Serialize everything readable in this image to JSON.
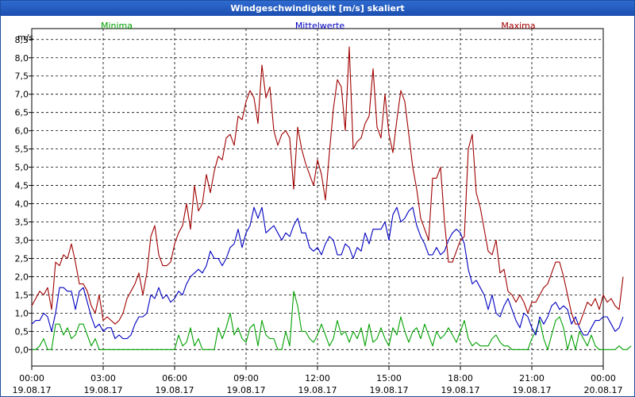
{
  "window": {
    "title": "Windgeschwindigkeit [m/s] skaliert"
  },
  "chart_data": {
    "type": "line",
    "title": "Windgeschwindigkeit [m/s] skaliert",
    "ylabel": "m/s",
    "xlabel": "",
    "ylim": [
      -0.45,
      8.8
    ],
    "xlim": [
      0,
      24
    ],
    "grid": true,
    "colors": {
      "min": "#00a000",
      "mean": "#0000c0",
      "max": "#a00000",
      "grid": "#000000"
    },
    "y_ticks": [
      "0,0",
      "0,5",
      "1,0",
      "1,5",
      "2,0",
      "2,5",
      "3,0",
      "3,5",
      "4,0",
      "4,5",
      "5,0",
      "5,5",
      "6,0",
      "6,5",
      "7,0",
      "7,5",
      "8,0",
      "8,5"
    ],
    "x_ticks": [
      {
        "time": "00:00",
        "date": "19.08.17"
      },
      {
        "time": "03:00",
        "date": "19.08.17"
      },
      {
        "time": "06:00",
        "date": "19.08.17"
      },
      {
        "time": "09:00",
        "date": "19.08.17"
      },
      {
        "time": "12:00",
        "date": "19.08.17"
      },
      {
        "time": "15:00",
        "date": "19.08.17"
      },
      {
        "time": "18:00",
        "date": "19.08.17"
      },
      {
        "time": "21:00",
        "date": "19.08.17"
      },
      {
        "time": "00:00",
        "date": "20.08.17"
      }
    ],
    "legend": [
      "Minima",
      "Mittelwerte",
      "Maxima"
    ],
    "series": [
      {
        "name": "Minima",
        "key": "min",
        "x_step_hours": 0.16667,
        "values": [
          0,
          0,
          0.1,
          0.3,
          0,
          0,
          0.7,
          0.7,
          0.4,
          0.6,
          0.3,
          0.4,
          0.7,
          0.7,
          0.4,
          0.1,
          0.3,
          0,
          0,
          0,
          0,
          0,
          0,
          0,
          0,
          0,
          0,
          0,
          0,
          0,
          0,
          0,
          0,
          0,
          0,
          0,
          0,
          0.4,
          0.1,
          0.2,
          0.6,
          0.1,
          0.3,
          0,
          0,
          0,
          0,
          0.6,
          0.3,
          0.6,
          1.0,
          0.4,
          0.6,
          0.3,
          0.2,
          0.6,
          0.7,
          0.1,
          0.8,
          0.4,
          0.3,
          0.3,
          0,
          0,
          0.5,
          0.1,
          1.6,
          1.2,
          0.5,
          0.5,
          0.3,
          0.2,
          0.4,
          0.7,
          0.4,
          0.1,
          0.3,
          0.8,
          0.4,
          0.5,
          0.2,
          0.5,
          0.3,
          0.6,
          0.1,
          0.7,
          0.2,
          0.3,
          0.6,
          0.3,
          0.1,
          0.6,
          0.4,
          0.9,
          0.5,
          0.2,
          0.5,
          0.6,
          0.3,
          0.7,
          0.4,
          0.1,
          0.5,
          0.3,
          0.4,
          0.6,
          0.4,
          0.2,
          0.5,
          0.8,
          0.3,
          0.1,
          0.2,
          0.1,
          0.1,
          0.1,
          0.3,
          0.4,
          0.2,
          0.1,
          0.1,
          0,
          0,
          0,
          0,
          0,
          0.3,
          0.5,
          0.8,
          0.3,
          0,
          0.4,
          0.8,
          0.9,
          0.6,
          0,
          0.4,
          0,
          0.5,
          0.3,
          0.1,
          0.4,
          0.1,
          0,
          0,
          0,
          0,
          0,
          0.1,
          0,
          0,
          0.1
        ]
      },
      {
        "name": "Mittelwerte",
        "key": "mean",
        "x_step_hours": 0.16667,
        "values": [
          0.7,
          0.8,
          0.8,
          1.0,
          0.9,
          0.5,
          1.0,
          1.7,
          1.7,
          1.6,
          1.6,
          1.1,
          1.6,
          1.7,
          1.3,
          0.9,
          0.6,
          0.7,
          0.5,
          0.6,
          0.6,
          0.3,
          0.4,
          0.3,
          0.3,
          0.4,
          0.7,
          0.9,
          0.9,
          1.0,
          1.5,
          1.4,
          1.7,
          1.4,
          1.5,
          1.3,
          1.4,
          1.6,
          1.5,
          1.8,
          2.0,
          2.1,
          2.2,
          2.1,
          2.3,
          2.7,
          2.5,
          2.5,
          2.3,
          2.5,
          2.8,
          2.9,
          3.3,
          2.8,
          3.2,
          3.4,
          3.9,
          3.6,
          3.9,
          3.2,
          3.3,
          3.4,
          3.2,
          3.0,
          3.2,
          3.1,
          3.4,
          3.6,
          3.2,
          3.2,
          2.8,
          2.7,
          2.8,
          2.6,
          2.9,
          3.1,
          3.0,
          2.6,
          2.6,
          2.9,
          2.8,
          2.5,
          2.8,
          2.7,
          3.2,
          2.9,
          3.3,
          3.3,
          3.3,
          3.5,
          3.0,
          3.7,
          3.9,
          3.5,
          3.6,
          3.8,
          3.9,
          3.4,
          3.1,
          2.9,
          2.6,
          2.6,
          2.8,
          2.6,
          2.7,
          3.0,
          3.2,
          3.3,
          3.2,
          2.9,
          2.2,
          1.8,
          1.9,
          1.7,
          1.5,
          1.1,
          1.5,
          1.0,
          0.9,
          1.2,
          1.4,
          1.1,
          0.8,
          0.6,
          1.0,
          0.9,
          0.6,
          0.4,
          0.9,
          0.7,
          0.9,
          1.2,
          1.3,
          1.1,
          1.2,
          1.1,
          0.7,
          0.9,
          0.6,
          0.4,
          0.4,
          0.6,
          0.8,
          0.8,
          0.9,
          0.9,
          0.7,
          0.5,
          0.6,
          0.9
        ]
      },
      {
        "name": "Maxima",
        "key": "max",
        "x_step_hours": 0.16667,
        "values": [
          1.2,
          1.4,
          1.6,
          1.5,
          1.7,
          1.1,
          2.4,
          2.3,
          2.6,
          2.5,
          2.9,
          2.4,
          1.8,
          1.8,
          1.6,
          1.2,
          1.0,
          1.5,
          0.8,
          0.9,
          0.8,
          0.7,
          0.8,
          1.0,
          1.4,
          1.6,
          1.8,
          2.1,
          1.5,
          2.1,
          3.1,
          3.4,
          2.6,
          2.3,
          2.3,
          2.4,
          2.9,
          3.2,
          3.4,
          4.0,
          3.3,
          4.5,
          3.8,
          4.0,
          4.8,
          4.3,
          4.9,
          5.3,
          5.2,
          5.8,
          5.9,
          5.6,
          6.4,
          6.3,
          6.8,
          7.1,
          6.9,
          6.2,
          7.8,
          6.9,
          7.2,
          6.0,
          5.6,
          5.9,
          6.0,
          5.8,
          4.4,
          6.1,
          5.5,
          5.1,
          4.8,
          4.5,
          5.2,
          4.8,
          4.1,
          5.4,
          6.6,
          7.4,
          7.2,
          6.0,
          8.3,
          5.5,
          5.7,
          5.8,
          6.2,
          6.4,
          7.7,
          6.1,
          5.8,
          7.0,
          5.9,
          5.4,
          6.3,
          7.1,
          6.8,
          5.9,
          5.0,
          4.4,
          3.6,
          3.3,
          3.0,
          4.7,
          4.7,
          5.0,
          3.5,
          2.4,
          2.4,
          2.7,
          3.0,
          3.1,
          5.5,
          5.9,
          4.3,
          3.9,
          3.3,
          2.7,
          2.6,
          3.0,
          2.1,
          2.2,
          1.6,
          1.5,
          1.3,
          1.5,
          1.3,
          1.0,
          1.3,
          1.3,
          1.5,
          1.7,
          1.8,
          2.1,
          2.4,
          2.4,
          2.0,
          1.5,
          1.0,
          0.7,
          0.7,
          1.0,
          1.3,
          1.2,
          1.4,
          1.1,
          1.5,
          1.3,
          1.4,
          1.2,
          1.1,
          2.0
        ]
      }
    ]
  }
}
